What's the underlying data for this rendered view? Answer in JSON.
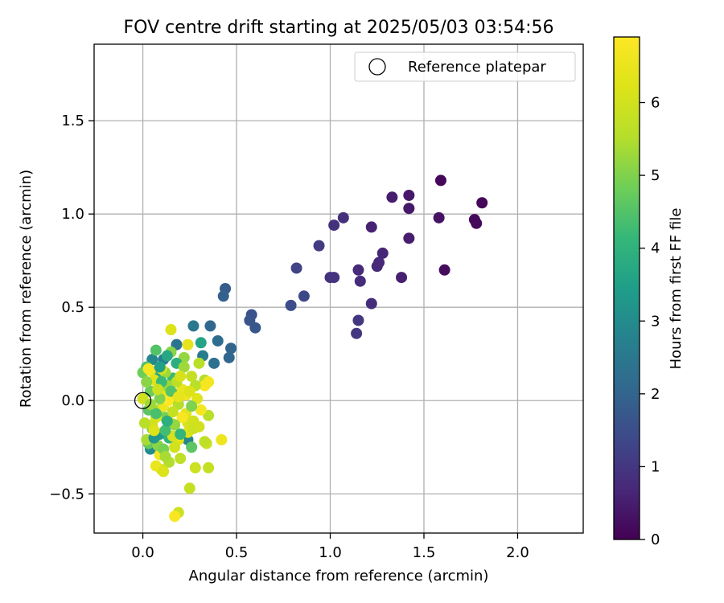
{
  "chart_data": {
    "type": "scatter",
    "title": "FOV centre drift starting at 2025/05/03 03:54:56",
    "xlabel": "Angular distance from reference (arcmin)",
    "ylabel": "Rotation from reference (arcmin)",
    "xlim": [
      -0.26,
      2.35
    ],
    "ylim": [
      -0.71,
      1.91
    ],
    "x_ticks": [
      0.0,
      0.5,
      1.0,
      1.5,
      2.0
    ],
    "x_tick_labels": [
      "0.0",
      "0.5",
      "1.0",
      "1.5",
      "2.0"
    ],
    "y_ticks": [
      -0.5,
      0.0,
      0.5,
      1.0,
      1.5
    ],
    "y_tick_labels": [
      "−0.5",
      "0.0",
      "0.5",
      "1.0",
      "1.5"
    ],
    "grid": true,
    "legend": {
      "placement": "top-right",
      "entries": [
        "Reference platepar"
      ]
    },
    "colorbar": {
      "label": "Hours from first FF file",
      "colormap": "viridis",
      "range": [
        0,
        6.9
      ],
      "ticks": [
        0,
        1,
        2,
        3,
        4,
        5,
        6
      ],
      "tick_labels": [
        "0",
        "1",
        "2",
        "3",
        "4",
        "5",
        "6"
      ]
    },
    "reference_point": {
      "name": "Reference platepar",
      "x": 0.0,
      "y": 0.0
    },
    "series": [
      {
        "marker": "filled-circle",
        "points": [
          {
            "x": 1.59,
            "y": 1.18,
            "c": 0.1
          },
          {
            "x": 1.81,
            "y": 1.06,
            "c": 0.1
          },
          {
            "x": 1.77,
            "y": 0.97,
            "c": 0.15
          },
          {
            "x": 1.78,
            "y": 0.95,
            "c": 0.15
          },
          {
            "x": 1.61,
            "y": 0.7,
            "c": 0.2
          },
          {
            "x": 1.58,
            "y": 0.98,
            "c": 0.3
          },
          {
            "x": 1.42,
            "y": 1.1,
            "c": 0.4
          },
          {
            "x": 1.42,
            "y": 1.03,
            "c": 0.4
          },
          {
            "x": 1.33,
            "y": 1.09,
            "c": 0.5
          },
          {
            "x": 1.42,
            "y": 0.87,
            "c": 0.5
          },
          {
            "x": 1.38,
            "y": 0.66,
            "c": 0.55
          },
          {
            "x": 1.22,
            "y": 0.93,
            "c": 0.6
          },
          {
            "x": 1.28,
            "y": 0.79,
            "c": 0.65
          },
          {
            "x": 1.26,
            "y": 0.74,
            "c": 0.7
          },
          {
            "x": 1.25,
            "y": 0.72,
            "c": 0.7
          },
          {
            "x": 1.15,
            "y": 0.7,
            "c": 0.75
          },
          {
            "x": 1.16,
            "y": 0.64,
            "c": 0.8
          },
          {
            "x": 1.22,
            "y": 0.52,
            "c": 0.8
          },
          {
            "x": 1.07,
            "y": 0.98,
            "c": 0.85
          },
          {
            "x": 1.02,
            "y": 0.94,
            "c": 0.9
          },
          {
            "x": 1.0,
            "y": 0.66,
            "c": 0.9
          },
          {
            "x": 1.02,
            "y": 0.66,
            "c": 0.95
          },
          {
            "x": 1.15,
            "y": 0.43,
            "c": 1.0
          },
          {
            "x": 1.14,
            "y": 0.36,
            "c": 1.0
          },
          {
            "x": 0.94,
            "y": 0.83,
            "c": 1.1
          },
          {
            "x": 0.82,
            "y": 0.71,
            "c": 1.25
          },
          {
            "x": 0.86,
            "y": 0.56,
            "c": 1.35
          },
          {
            "x": 0.79,
            "y": 0.51,
            "c": 1.45
          },
          {
            "x": 0.58,
            "y": 0.46,
            "c": 1.6
          },
          {
            "x": 0.57,
            "y": 0.43,
            "c": 1.65
          },
          {
            "x": 0.6,
            "y": 0.39,
            "c": 1.7
          },
          {
            "x": 0.44,
            "y": 0.6,
            "c": 1.8
          },
          {
            "x": 0.43,
            "y": 0.56,
            "c": 1.9
          },
          {
            "x": 0.47,
            "y": 0.28,
            "c": 2.0
          },
          {
            "x": 0.46,
            "y": 0.23,
            "c": 2.05
          },
          {
            "x": 0.36,
            "y": 0.4,
            "c": 2.1
          },
          {
            "x": 0.4,
            "y": 0.32,
            "c": 2.2
          },
          {
            "x": 0.38,
            "y": 0.2,
            "c": 2.3
          },
          {
            "x": 0.27,
            "y": 0.4,
            "c": 2.5
          },
          {
            "x": 0.32,
            "y": 0.24,
            "c": 2.6
          },
          {
            "x": 0.18,
            "y": 0.3,
            "c": 2.4
          },
          {
            "x": 0.11,
            "y": 0.22,
            "c": 2.7
          },
          {
            "x": 0.05,
            "y": 0.22,
            "c": 2.9
          },
          {
            "x": 0.24,
            "y": -0.21,
            "c": 2.8
          },
          {
            "x": 0.04,
            "y": -0.26,
            "c": 3.0
          },
          {
            "x": 0.2,
            "y": 0.04,
            "c": 3.1
          },
          {
            "x": 0.31,
            "y": 0.31,
            "c": 3.6
          },
          {
            "x": 0.09,
            "y": -0.18,
            "c": 3.4
          },
          {
            "x": 0.07,
            "y": 0.13,
            "c": 3.8
          },
          {
            "x": 0.14,
            "y": -0.2,
            "c": 4.0
          },
          {
            "x": 0.16,
            "y": 0.12,
            "c": 4.2
          },
          {
            "x": 0.02,
            "y": 0.18,
            "c": 4.4
          },
          {
            "x": 0.07,
            "y": 0.27,
            "c": 4.5
          },
          {
            "x": 0.26,
            "y": -0.25,
            "c": 4.6
          },
          {
            "x": 0.03,
            "y": -0.23,
            "c": 4.7
          },
          {
            "x": 0.0,
            "y": 0.15,
            "c": 4.8
          },
          {
            "x": 0.12,
            "y": -0.09,
            "c": 4.9
          },
          {
            "x": 0.05,
            "y": -0.15,
            "c": 5.0
          },
          {
            "x": 0.15,
            "y": 0.26,
            "c": 5.1
          },
          {
            "x": 0.22,
            "y": 0.23,
            "c": 5.2
          },
          {
            "x": 0.12,
            "y": 0.15,
            "c": 5.3
          },
          {
            "x": 0.08,
            "y": -0.05,
            "c": 5.4
          },
          {
            "x": 0.14,
            "y": -0.33,
            "c": 5.5
          },
          {
            "x": 0.2,
            "y": -0.31,
            "c": 5.7
          },
          {
            "x": 0.25,
            "y": -0.47,
            "c": 5.8
          },
          {
            "x": 0.19,
            "y": -0.6,
            "c": 5.9
          },
          {
            "x": 0.1,
            "y": -0.37,
            "c": 6.0
          },
          {
            "x": 0.28,
            "y": -0.36,
            "c": 5.9
          },
          {
            "x": 0.35,
            "y": -0.36,
            "c": 5.8
          },
          {
            "x": 0.34,
            "y": -0.23,
            "c": 5.9
          },
          {
            "x": 0.33,
            "y": -0.22,
            "c": 5.7
          },
          {
            "x": 0.26,
            "y": 0.13,
            "c": 5.8
          },
          {
            "x": 0.3,
            "y": 0.2,
            "c": 5.6
          },
          {
            "x": 0.33,
            "y": 0.11,
            "c": 5.5
          },
          {
            "x": 0.35,
            "y": -0.08,
            "c": 5.6
          },
          {
            "x": 0.15,
            "y": 0.38,
            "c": 6.2
          },
          {
            "x": 0.24,
            "y": 0.3,
            "c": 6.4
          },
          {
            "x": 0.29,
            "y": 0.01,
            "c": 6.3
          },
          {
            "x": 0.1,
            "y": 0.17,
            "c": 6.1
          },
          {
            "x": 0.04,
            "y": 0.16,
            "c": 6.6
          },
          {
            "x": 0.03,
            "y": 0.17,
            "c": 6.7
          },
          {
            "x": 0.0,
            "y": 0.01,
            "c": 6.0
          },
          {
            "x": 0.07,
            "y": -0.09,
            "c": 6.2
          },
          {
            "x": 0.11,
            "y": -0.03,
            "c": 6.5
          },
          {
            "x": 0.13,
            "y": 0.01,
            "c": 6.6
          },
          {
            "x": 0.15,
            "y": -0.12,
            "c": 6.4
          },
          {
            "x": 0.21,
            "y": 0.06,
            "c": 6.5
          },
          {
            "x": 0.23,
            "y": 0.03,
            "c": 6.6
          },
          {
            "x": 0.23,
            "y": -0.07,
            "c": 6.3
          },
          {
            "x": 0.24,
            "y": -0.12,
            "c": 6.1
          },
          {
            "x": 0.27,
            "y": -0.11,
            "c": 6.0
          },
          {
            "x": 0.21,
            "y": -0.09,
            "c": 6.8
          },
          {
            "x": 0.24,
            "y": -0.17,
            "c": 6.2
          },
          {
            "x": 0.19,
            "y": -0.21,
            "c": 6.3
          },
          {
            "x": 0.17,
            "y": -0.25,
            "c": 6.0
          },
          {
            "x": 0.16,
            "y": -0.19,
            "c": 6.1
          },
          {
            "x": 0.09,
            "y": -0.29,
            "c": 6.7
          },
          {
            "x": 0.07,
            "y": -0.35,
            "c": 6.5
          },
          {
            "x": 0.11,
            "y": -0.38,
            "c": 6.2
          },
          {
            "x": 0.17,
            "y": -0.62,
            "c": 6.8
          },
          {
            "x": 0.42,
            "y": -0.21,
            "c": 6.6
          },
          {
            "x": 0.33,
            "y": 0.08,
            "c": 6.8
          },
          {
            "x": 0.35,
            "y": 0.1,
            "c": 6.7
          },
          {
            "x": 0.31,
            "y": -0.05,
            "c": 6.7
          },
          {
            "x": 0.22,
            "y": 0.05,
            "c": 6.5
          },
          {
            "x": 0.14,
            "y": 0.0,
            "c": 6.9
          },
          {
            "x": 0.1,
            "y": 0.05,
            "c": 6.4
          },
          {
            "x": 0.06,
            "y": 0.11,
            "c": 6.3
          },
          {
            "x": 0.05,
            "y": -0.13,
            "c": 6.0
          },
          {
            "x": 0.01,
            "y": -0.12,
            "c": 5.6
          },
          {
            "x": 0.02,
            "y": -0.21,
            "c": 5.4
          },
          {
            "x": 0.08,
            "y": -0.24,
            "c": 5.1
          },
          {
            "x": 0.11,
            "y": -0.26,
            "c": 4.9
          },
          {
            "x": 0.17,
            "y": -0.13,
            "c": 5.2
          },
          {
            "x": 0.19,
            "y": -0.02,
            "c": 5.5
          },
          {
            "x": 0.18,
            "y": 0.1,
            "c": 5.7
          },
          {
            "x": 0.13,
            "y": 0.08,
            "c": 5.3
          },
          {
            "x": 0.09,
            "y": 0.01,
            "c": 5.0
          },
          {
            "x": 0.04,
            "y": 0.05,
            "c": 4.8
          },
          {
            "x": 0.03,
            "y": -0.05,
            "c": 4.6
          },
          {
            "x": 0.07,
            "y": -0.07,
            "c": 4.4
          },
          {
            "x": 0.12,
            "y": -0.16,
            "c": 4.3
          },
          {
            "x": 0.2,
            "y": -0.18,
            "c": 4.1
          },
          {
            "x": 0.18,
            "y": 0.2,
            "c": 3.9
          },
          {
            "x": 0.13,
            "y": 0.24,
            "c": 3.7
          },
          {
            "x": 0.09,
            "y": 0.18,
            "c": 3.5
          },
          {
            "x": 0.06,
            "y": -0.2,
            "c": 3.3
          },
          {
            "x": 0.13,
            "y": -0.11,
            "c": 3.9
          },
          {
            "x": 0.26,
            "y": -0.03,
            "c": 5.0
          },
          {
            "x": 0.22,
            "y": 0.18,
            "c": 5.3
          },
          {
            "x": 0.28,
            "y": 0.08,
            "c": 5.6
          },
          {
            "x": 0.15,
            "y": 0.05,
            "c": 4.5
          },
          {
            "x": 0.1,
            "y": 0.1,
            "c": 4.2
          },
          {
            "x": 0.02,
            "y": 0.1,
            "c": 5.1
          },
          {
            "x": 0.16,
            "y": -0.06,
            "c": 5.8
          },
          {
            "x": 0.06,
            "y": -0.16,
            "c": 6.2
          },
          {
            "x": 0.2,
            "y": 0.13,
            "c": 6.1
          },
          {
            "x": 0.27,
            "y": -0.15,
            "c": 5.9
          },
          {
            "x": 0.12,
            "y": -0.3,
            "c": 5.4
          },
          {
            "x": 0.3,
            "y": -0.14,
            "c": 6.0
          },
          {
            "x": 0.19,
            "y": 0.02,
            "c": 6.4
          },
          {
            "x": 0.25,
            "y": 0.05,
            "c": 6.2
          },
          {
            "x": 0.08,
            "y": 0.06,
            "c": 5.9
          },
          {
            "x": 0.04,
            "y": -0.02,
            "c": 5.3
          }
        ]
      }
    ]
  }
}
